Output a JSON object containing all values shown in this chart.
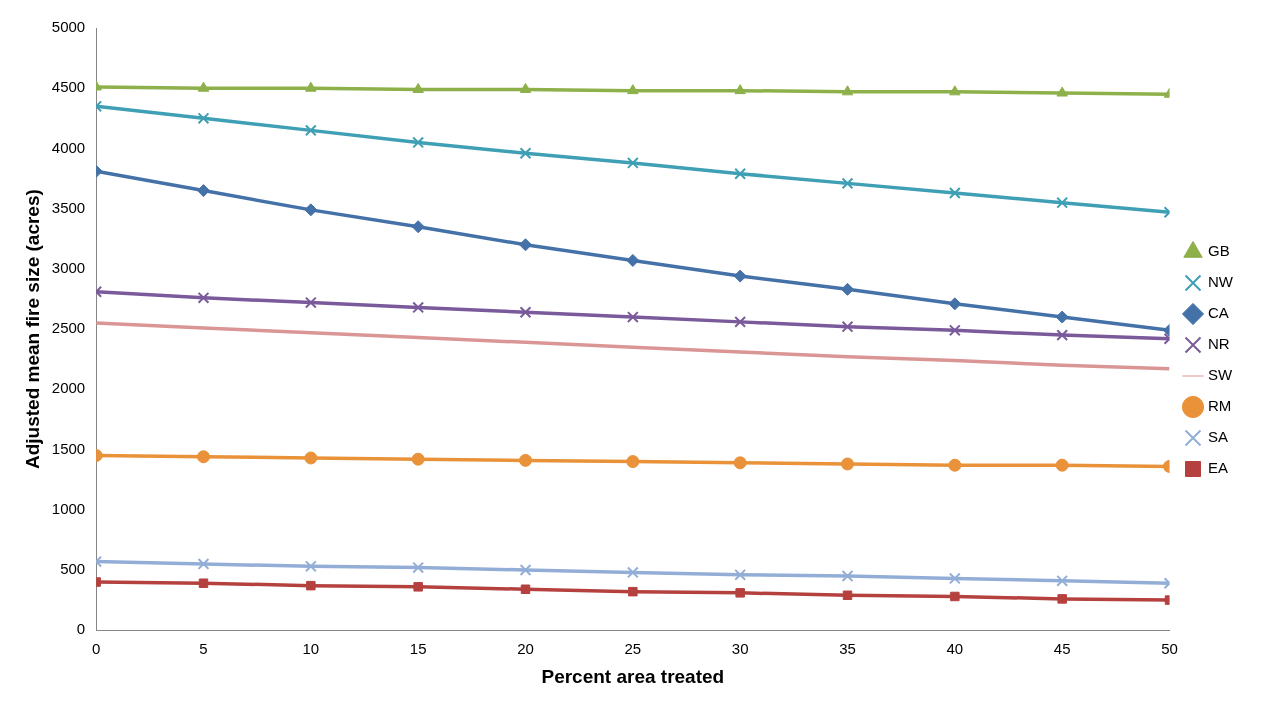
{
  "chart_data": {
    "type": "line",
    "xlabel": "Percent area treated",
    "ylabel": "Adjusted mean fire size (acres)",
    "x": [
      0,
      5,
      10,
      15,
      20,
      25,
      30,
      35,
      40,
      45,
      50
    ],
    "xlim": [
      0,
      50
    ],
    "xticks": [
      0,
      5,
      10,
      15,
      20,
      25,
      30,
      35,
      40,
      45,
      50
    ],
    "ylim": [
      0,
      5000
    ],
    "yticks": [
      0,
      500,
      1000,
      1500,
      2000,
      2500,
      3000,
      3500,
      4000,
      4500,
      5000
    ],
    "grid": false,
    "legend": "right",
    "series": [
      {
        "name": "GB",
        "color": "#8db04a",
        "marker": "triangle",
        "values": [
          4510,
          4500,
          4500,
          4490,
          4490,
          4480,
          4480,
          4470,
          4470,
          4460,
          4450
        ]
      },
      {
        "name": "NW",
        "color": "#3f9fb5",
        "marker": "cross",
        "values": [
          4350,
          4250,
          4150,
          4050,
          3960,
          3880,
          3790,
          3710,
          3630,
          3550,
          3470
        ]
      },
      {
        "name": "CA",
        "color": "#4472a8",
        "marker": "diamond",
        "values": [
          3810,
          3650,
          3490,
          3350,
          3200,
          3070,
          2940,
          2830,
          2710,
          2600,
          2490
        ]
      },
      {
        "name": "NR",
        "color": "#7a5a9b",
        "marker": "cross",
        "values": [
          2810,
          2760,
          2720,
          2680,
          2640,
          2600,
          2560,
          2520,
          2490,
          2450,
          2420
        ]
      },
      {
        "name": "SW",
        "color": "#d99694",
        "marker": "none",
        "values": [
          2550,
          2510,
          2470,
          2430,
          2390,
          2350,
          2310,
          2270,
          2240,
          2200,
          2170
        ]
      },
      {
        "name": "RM",
        "color": "#e9923a",
        "marker": "circle",
        "values": [
          1450,
          1440,
          1430,
          1420,
          1410,
          1400,
          1390,
          1380,
          1370,
          1370,
          1360
        ]
      },
      {
        "name": "SA",
        "color": "#93aed6",
        "marker": "cross",
        "values": [
          570,
          550,
          530,
          520,
          500,
          480,
          460,
          450,
          430,
          410,
          390
        ]
      },
      {
        "name": "EA",
        "color": "#b5413f",
        "marker": "square",
        "values": [
          400,
          390,
          370,
          360,
          340,
          320,
          310,
          290,
          280,
          260,
          250
        ]
      }
    ]
  }
}
